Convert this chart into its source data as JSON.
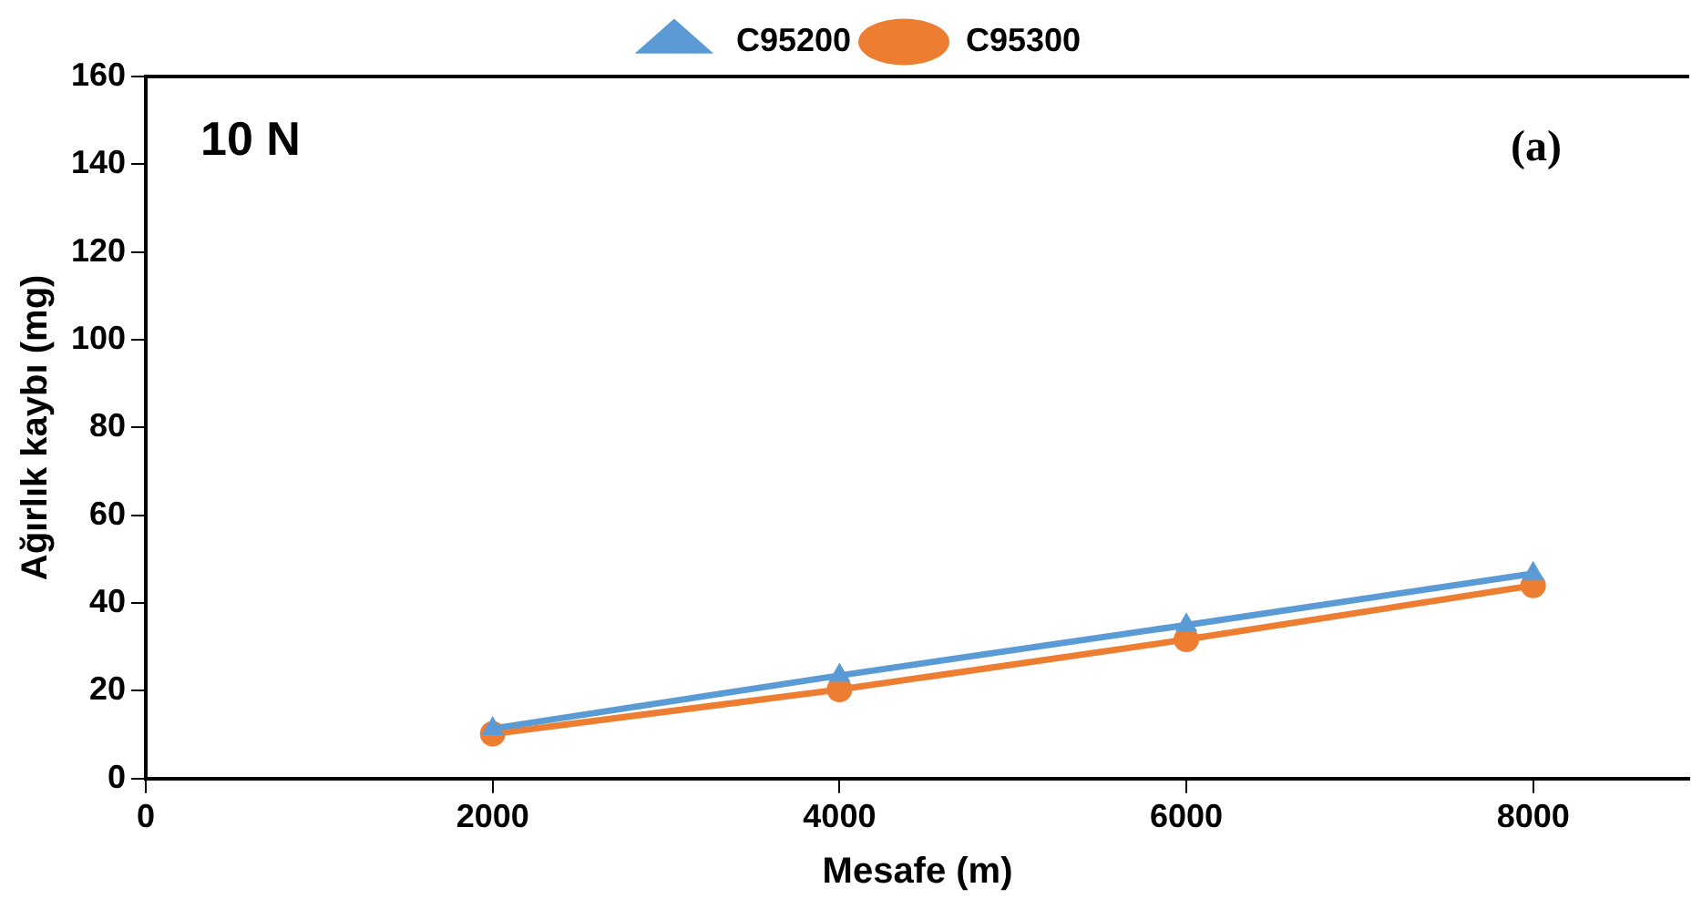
{
  "chart_data": {
    "type": "line",
    "xlabel": "Mesafe (m)",
    "ylabel": "Ağırlık kaybı (mg)",
    "annotations": [
      "10 N",
      "(a)"
    ],
    "x": [
      2000,
      4000,
      6000,
      8000
    ],
    "series": [
      {
        "name": "C95200",
        "color": "#5b9bd5",
        "marker": "triangle",
        "values": [
          11.4,
          23.5,
          35,
          46.7
        ]
      },
      {
        "name": "C95300",
        "color": "#ed7d31",
        "marker": "circle",
        "values": [
          10.2,
          20.3,
          31.7,
          44
        ]
      }
    ],
    "xlim": [
      0,
      8900
    ],
    "xticks": [
      0,
      2000,
      4000,
      6000,
      8000
    ],
    "ylim": [
      0,
      160
    ],
    "yticks": [
      0,
      20,
      40,
      60,
      80,
      100,
      120,
      140,
      160
    ],
    "grid": false,
    "legend": "top",
    "line_style": "solid"
  }
}
